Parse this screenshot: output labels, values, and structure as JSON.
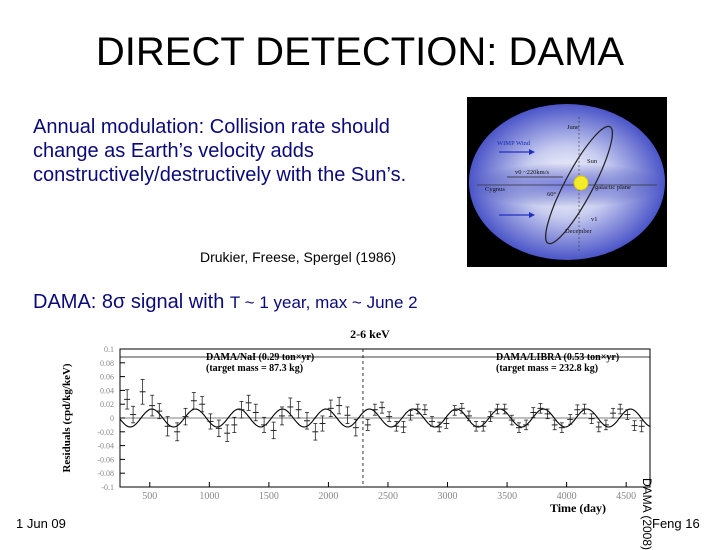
{
  "slide": {
    "title": "DIRECT DETECTION: DAMA",
    "intro": "Annual modulation: Collision rate should change as Earth’s velocity adds constructively/destructively with the Sun’s.",
    "citation": "Drukier, Freese, Spergel (1986)",
    "dama_prefix": "DAMA: 8",
    "sigma": "σ",
    "dama_mid": " signal with ",
    "dama_small": "T ~ 1 year, max ~ June 2",
    "side_label": "DAMA (2008)",
    "footer_date": "1 Jun 09",
    "footer_page": "Feng 16",
    "text_color": "#0a0a7a"
  },
  "orbit_figure": {
    "labels": [
      "June",
      "WIMP Wind",
      "Sun",
      "v0 ~220km/s",
      "Cygnus",
      "60°",
      "galactic plane",
      "v1",
      "December"
    ],
    "icons": [
      "sun-icon",
      "orbit-ellipse",
      "wind-arrow-icon"
    ]
  },
  "chart_data": {
    "type": "scatter",
    "title": "2-6 keV",
    "xlabel": "Time (day)",
    "ylabel": "Residuals (cpd/kg/keV)",
    "xlim": [
      250,
      4700
    ],
    "ylim": [
      -0.1,
      0.1
    ],
    "x_ticks": [
      500,
      1000,
      1500,
      2000,
      2500,
      3000,
      3500,
      4000,
      4500
    ],
    "y_ticks": [
      "0.1",
      "0.08",
      "0.06",
      "0.04",
      "0.02",
      "0",
      "-0.02",
      "-0.04",
      "-0.06",
      "-0.08",
      "-0.1"
    ],
    "model": {
      "amplitude": 0.013,
      "period_days": 365.25,
      "phase_day": 152.5
    },
    "annotations": [
      {
        "text_left": "DAMA/NaI (0.29 ton×yr)",
        "text_left2": "(target mass = 87.3 kg)",
        "x_from": 250,
        "x_to": 2290
      },
      {
        "text_right": "DAMA/LIBRA (0.53 ton×yr)",
        "text_right2": "(target mass = 232.8 kg)",
        "x_from": 2290,
        "x_to": 4700
      }
    ],
    "points": [
      {
        "x": 310,
        "y": 0.027,
        "e": 0.014
      },
      {
        "x": 360,
        "y": 0.005,
        "e": 0.012
      },
      {
        "x": 440,
        "y": 0.038,
        "e": 0.018
      },
      {
        "x": 520,
        "y": 0.018,
        "e": 0.015
      },
      {
        "x": 580,
        "y": 0.01,
        "e": 0.011
      },
      {
        "x": 650,
        "y": -0.012,
        "e": 0.014
      },
      {
        "x": 730,
        "y": -0.02,
        "e": 0.013
      },
      {
        "x": 800,
        "y": 0.002,
        "e": 0.012
      },
      {
        "x": 870,
        "y": 0.025,
        "e": 0.012
      },
      {
        "x": 940,
        "y": 0.02,
        "e": 0.011
      },
      {
        "x": 1010,
        "y": -0.005,
        "e": 0.011
      },
      {
        "x": 1080,
        "y": -0.015,
        "e": 0.012
      },
      {
        "x": 1150,
        "y": -0.022,
        "e": 0.012
      },
      {
        "x": 1210,
        "y": -0.01,
        "e": 0.011
      },
      {
        "x": 1270,
        "y": 0.012,
        "e": 0.012
      },
      {
        "x": 1330,
        "y": 0.022,
        "e": 0.011
      },
      {
        "x": 1390,
        "y": 0.008,
        "e": 0.012
      },
      {
        "x": 1460,
        "y": -0.01,
        "e": 0.011
      },
      {
        "x": 1540,
        "y": -0.018,
        "e": 0.012
      },
      {
        "x": 1610,
        "y": 0.003,
        "e": 0.013
      },
      {
        "x": 1680,
        "y": 0.016,
        "e": 0.013
      },
      {
        "x": 1750,
        "y": 0.012,
        "e": 0.012
      },
      {
        "x": 1820,
        "y": -0.004,
        "e": 0.012
      },
      {
        "x": 1890,
        "y": -0.02,
        "e": 0.012
      },
      {
        "x": 1950,
        "y": -0.008,
        "e": 0.011
      },
      {
        "x": 2020,
        "y": 0.014,
        "e": 0.012
      },
      {
        "x": 2090,
        "y": 0.018,
        "e": 0.012
      },
      {
        "x": 2160,
        "y": 0.004,
        "e": 0.012
      },
      {
        "x": 2230,
        "y": -0.014,
        "e": 0.012
      },
      {
        "x": 2330,
        "y": -0.01,
        "e": 0.008
      },
      {
        "x": 2390,
        "y": 0.012,
        "e": 0.008
      },
      {
        "x": 2450,
        "y": 0.015,
        "e": 0.008
      },
      {
        "x": 2510,
        "y": 0.002,
        "e": 0.007
      },
      {
        "x": 2570,
        "y": -0.012,
        "e": 0.007
      },
      {
        "x": 2630,
        "y": -0.013,
        "e": 0.008
      },
      {
        "x": 2690,
        "y": 0.004,
        "e": 0.007
      },
      {
        "x": 2750,
        "y": 0.013,
        "e": 0.007
      },
      {
        "x": 2810,
        "y": 0.012,
        "e": 0.007
      },
      {
        "x": 2870,
        "y": -0.005,
        "e": 0.007
      },
      {
        "x": 2930,
        "y": -0.013,
        "e": 0.007
      },
      {
        "x": 2990,
        "y": -0.008,
        "e": 0.007
      },
      {
        "x": 3060,
        "y": 0.011,
        "e": 0.007
      },
      {
        "x": 3120,
        "y": 0.014,
        "e": 0.007
      },
      {
        "x": 3180,
        "y": 0.003,
        "e": 0.007
      },
      {
        "x": 3240,
        "y": -0.012,
        "e": 0.007
      },
      {
        "x": 3300,
        "y": -0.012,
        "e": 0.007
      },
      {
        "x": 3360,
        "y": 0.002,
        "e": 0.007
      },
      {
        "x": 3420,
        "y": 0.013,
        "e": 0.007
      },
      {
        "x": 3480,
        "y": 0.013,
        "e": 0.007
      },
      {
        "x": 3540,
        "y": -0.003,
        "e": 0.007
      },
      {
        "x": 3600,
        "y": -0.014,
        "e": 0.007
      },
      {
        "x": 3660,
        "y": -0.01,
        "e": 0.007
      },
      {
        "x": 3720,
        "y": 0.008,
        "e": 0.007
      },
      {
        "x": 3780,
        "y": 0.014,
        "e": 0.007
      },
      {
        "x": 3840,
        "y": 0.006,
        "e": 0.007
      },
      {
        "x": 3900,
        "y": -0.01,
        "e": 0.007
      },
      {
        "x": 3960,
        "y": -0.014,
        "e": 0.007
      },
      {
        "x": 4030,
        "y": -0.002,
        "e": 0.007
      },
      {
        "x": 4090,
        "y": 0.012,
        "e": 0.007
      },
      {
        "x": 4150,
        "y": 0.013,
        "e": 0.007
      },
      {
        "x": 4210,
        "y": -0.001,
        "e": 0.007
      },
      {
        "x": 4270,
        "y": -0.013,
        "e": 0.007
      },
      {
        "x": 4330,
        "y": -0.01,
        "e": 0.007
      },
      {
        "x": 4390,
        "y": 0.007,
        "e": 0.007
      },
      {
        "x": 4450,
        "y": 0.013,
        "e": 0.007
      },
      {
        "x": 4510,
        "y": 0.005,
        "e": 0.007
      },
      {
        "x": 4570,
        "y": -0.011,
        "e": 0.007
      },
      {
        "x": 4630,
        "y": -0.012,
        "e": 0.008
      }
    ]
  }
}
